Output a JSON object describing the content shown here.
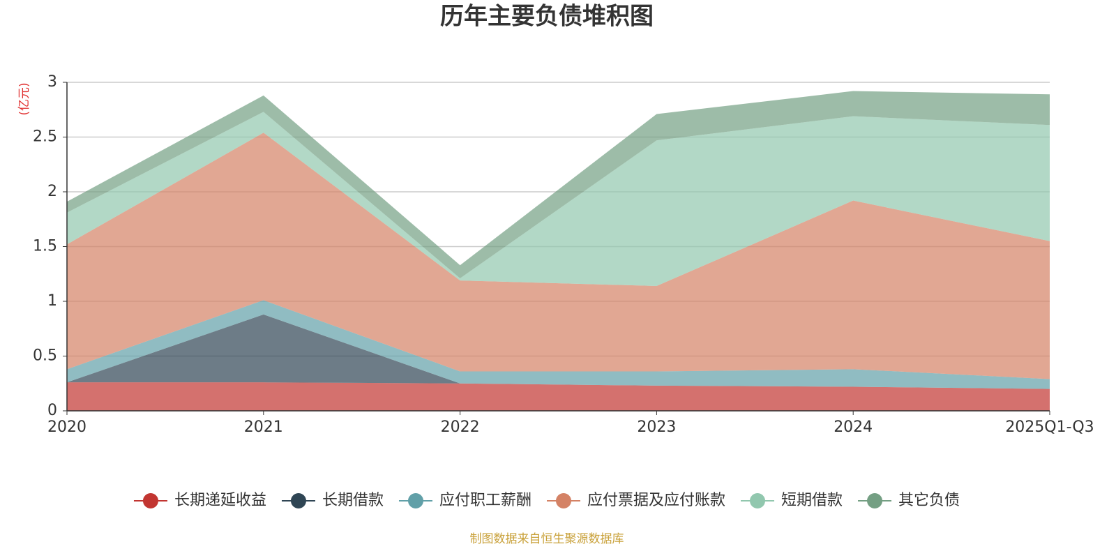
{
  "chart_data": {
    "type": "stacked_area",
    "title": "历年主要负债堆积图",
    "y_label": "(亿元)",
    "source": "制图数据来自恒生聚源数据库",
    "categories": [
      "2020",
      "2021",
      "2022",
      "2023",
      "2024",
      "2025Q1-Q3"
    ],
    "ylim": [
      0,
      3
    ],
    "yticks": [
      0,
      0.5,
      1,
      1.5,
      2,
      2.5,
      3
    ],
    "grid": true,
    "series": [
      {
        "name": "长期递延收益",
        "color": "#c23531",
        "values": [
          0.26,
          0.26,
          0.25,
          0.23,
          0.22,
          0.2
        ]
      },
      {
        "name": "长期借款",
        "color": "#2f4554",
        "values": [
          0,
          0.62,
          0,
          0,
          0,
          0
        ]
      },
      {
        "name": "应付职工薪酬",
        "color": "#61a0a8",
        "values": [
          0.12,
          0.13,
          0.11,
          0.13,
          0.16,
          0.09
        ]
      },
      {
        "name": "应付票据及应付账款",
        "color": "#d48265",
        "values": [
          1.14,
          1.53,
          0.83,
          0.78,
          1.54,
          1.26
        ]
      },
      {
        "name": "短期借款",
        "color": "#91c7ae",
        "values": [
          0.29,
          0.19,
          0.02,
          1.33,
          0.77,
          1.06
        ]
      },
      {
        "name": "其它负债",
        "color": "#749f83",
        "values": [
          0.1,
          0.15,
          0.12,
          0.24,
          0.23,
          0.28
        ]
      }
    ]
  }
}
